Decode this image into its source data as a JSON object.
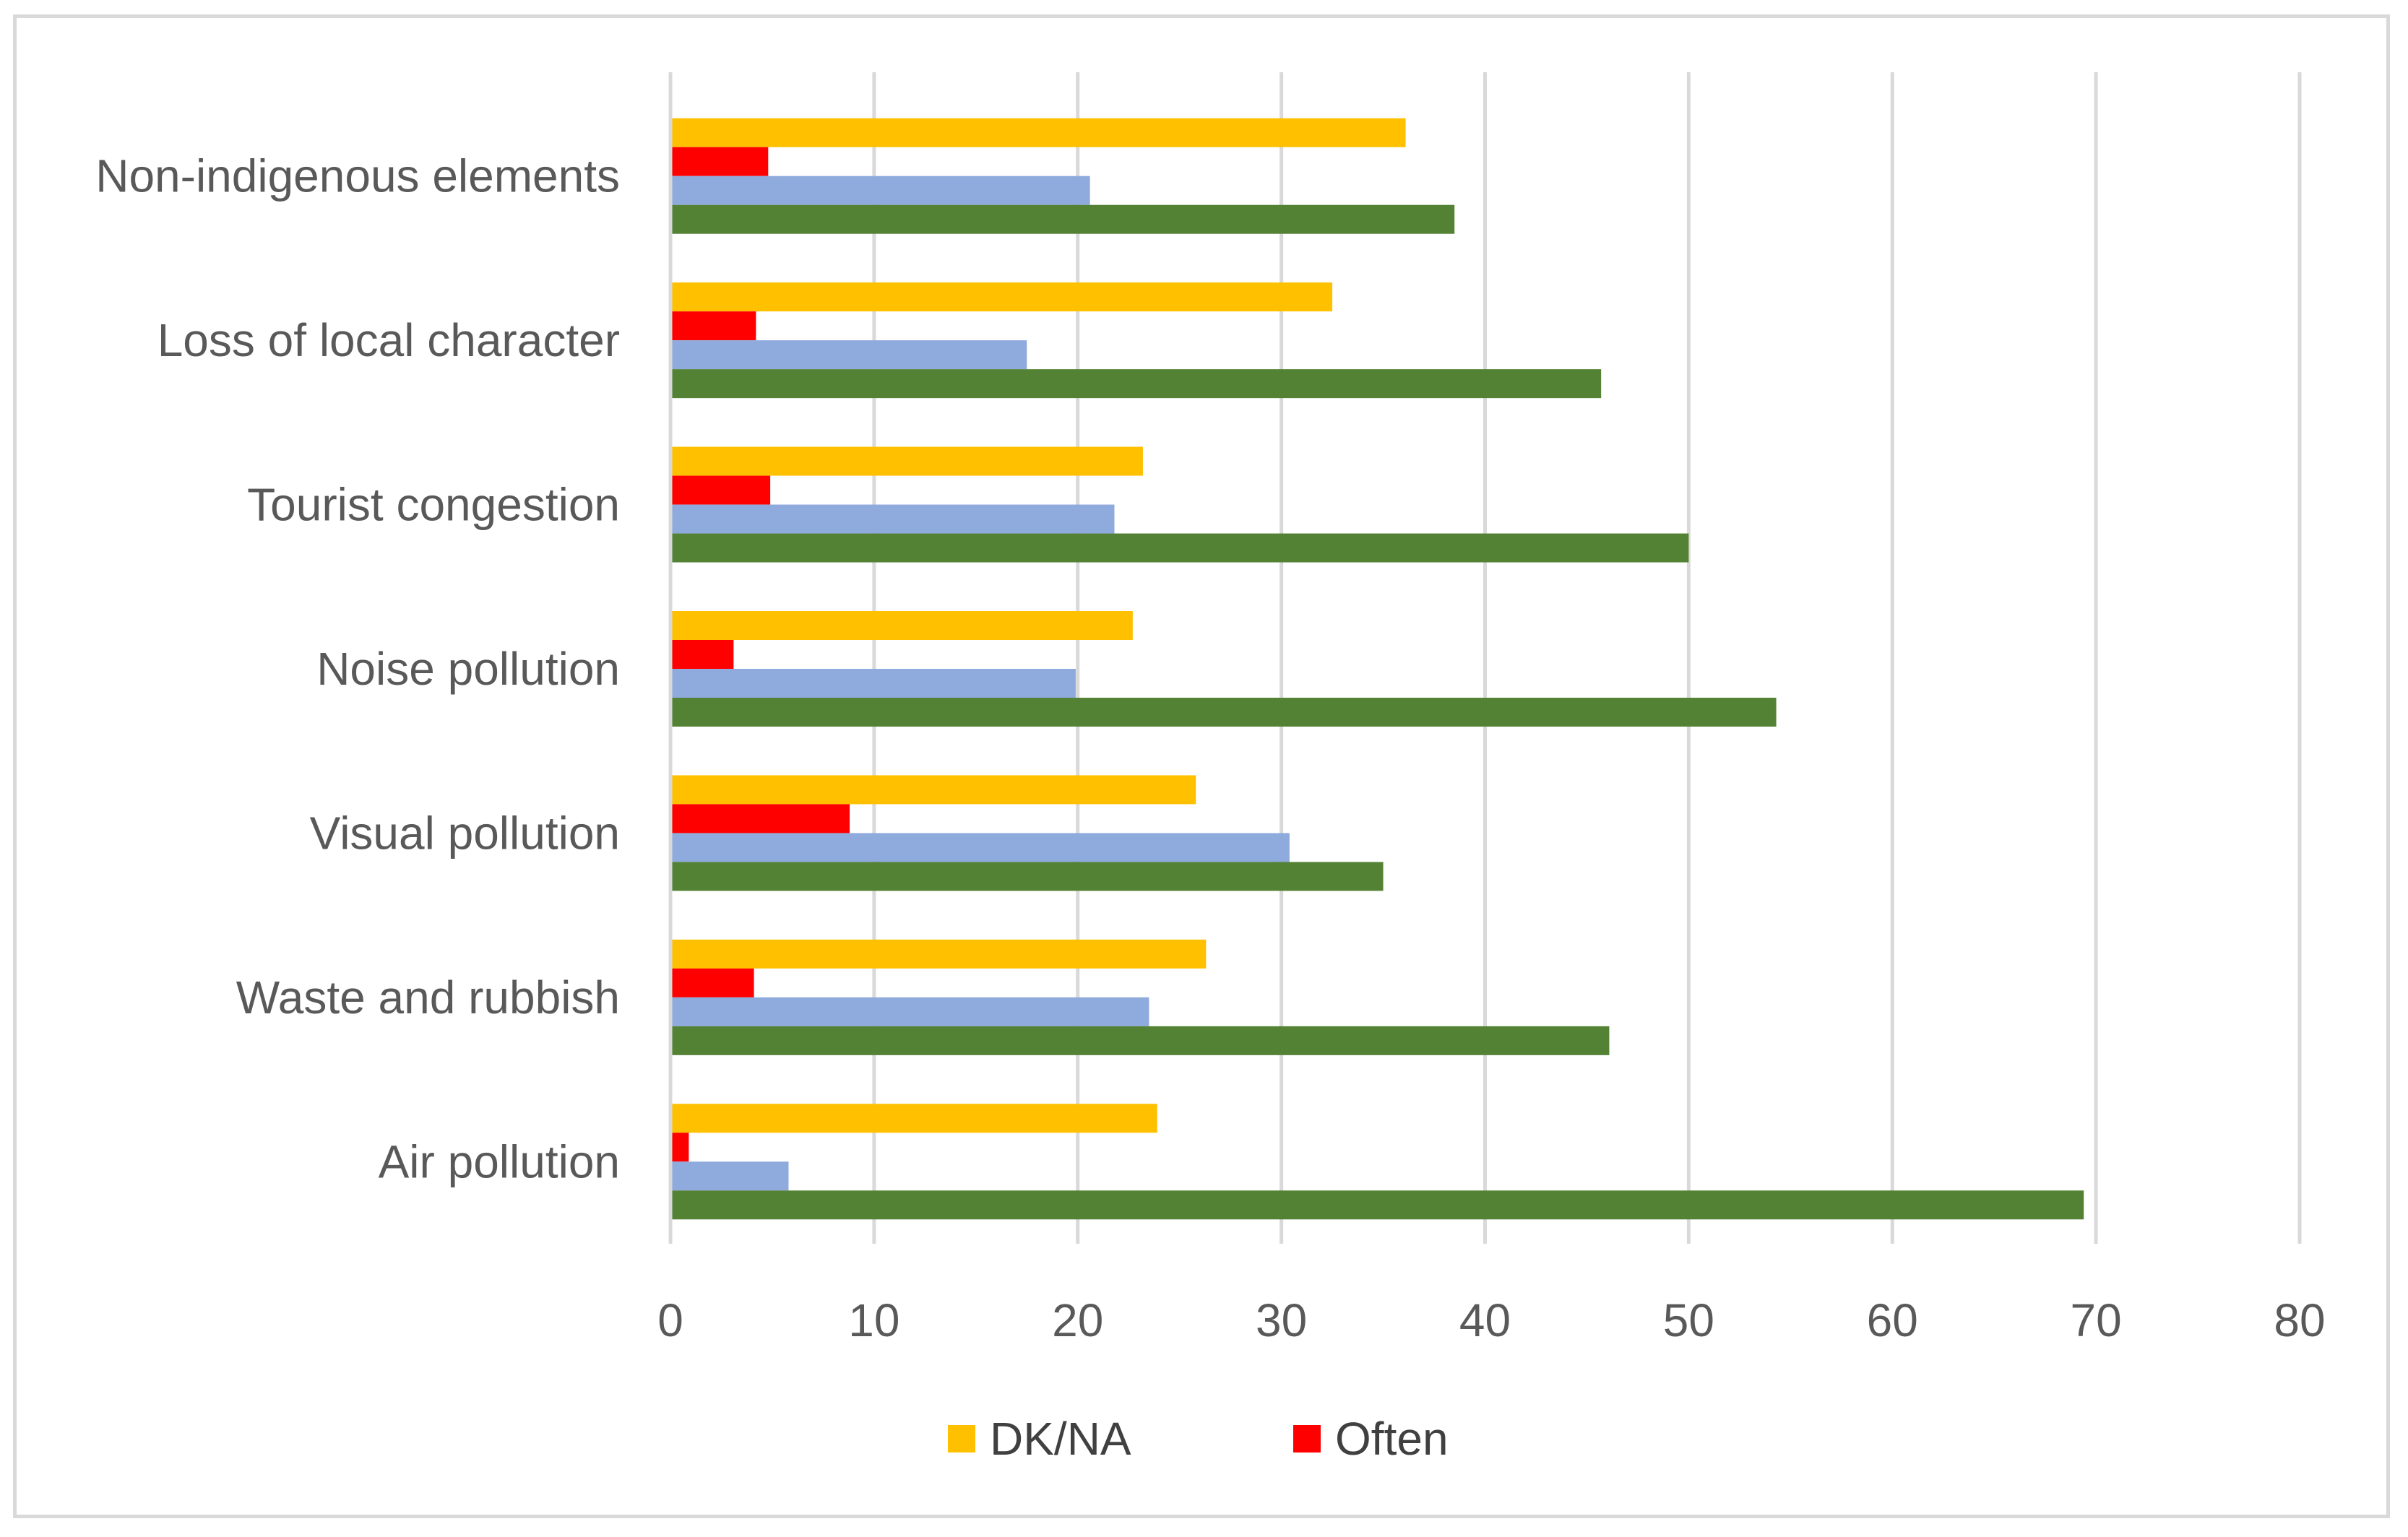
{
  "chart_data": {
    "type": "bar",
    "orientation": "horizontal",
    "title": "",
    "xlabel": "",
    "ylabel": "",
    "xlim": [
      0,
      80
    ],
    "xticks": [
      0,
      10,
      20,
      30,
      40,
      50,
      60,
      70,
      80
    ],
    "grid": true,
    "legend_position": "bottom",
    "categories": [
      "Non-indigenous elements",
      "Loss of local character",
      "Tourist congestion",
      "Noise pollution",
      "Visual pollution",
      "Waste and rubbish",
      "Air pollution"
    ],
    "series": [
      {
        "name": "DK/NA",
        "color": "#ffc000",
        "show_in_legend": true,
        "values": [
          36.1,
          32.5,
          23.2,
          22.7,
          25.8,
          26.3,
          23.9
        ]
      },
      {
        "name": "Often",
        "color": "#ff0000",
        "show_in_legend": true,
        "values": [
          4.8,
          4.2,
          4.9,
          3.1,
          8.8,
          4.1,
          0.9
        ]
      },
      {
        "name": "",
        "color": "#8faadc",
        "show_in_legend": false,
        "values": [
          20.6,
          17.5,
          21.8,
          19.9,
          30.4,
          23.5,
          5.8
        ]
      },
      {
        "name": "",
        "color": "#548235",
        "show_in_legend": false,
        "values": [
          38.5,
          45.7,
          50.0,
          54.3,
          35.0,
          46.1,
          69.4
        ]
      }
    ]
  }
}
